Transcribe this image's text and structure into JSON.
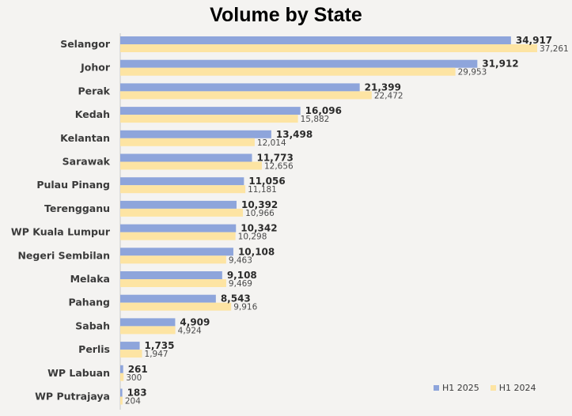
{
  "colors": {
    "h1_2025": "#8ea5db",
    "h1_2024": "#fde4a3",
    "axis": "#c8c8c8"
  },
  "chart_data": {
    "type": "bar",
    "orientation": "horizontal",
    "title": "Volume by State",
    "categories": [
      "Selangor",
      "Johor",
      "Perak",
      "Kedah",
      "Kelantan",
      "Sarawak",
      "Pulau Pinang",
      "Terengganu",
      "WP Kuala Lumpur",
      "Negeri Sembilan",
      "Melaka",
      "Pahang",
      "Sabah",
      "Perlis",
      "WP Labuan",
      "WP Putrajaya"
    ],
    "series": [
      {
        "name": "H1 2025",
        "values": [
          34917,
          31912,
          21399,
          16096,
          13498,
          11773,
          11056,
          10392,
          10342,
          10108,
          9108,
          8543,
          4909,
          1735,
          261,
          183
        ],
        "labels": [
          "34,917",
          "31,912",
          "21,399",
          "16,096",
          "13,498",
          "11,773",
          "11,056",
          "10,392",
          "10,342",
          "10,108",
          "9,108",
          "8,543",
          "4,909",
          "1,735",
          "261",
          "183"
        ]
      },
      {
        "name": "H1 2024",
        "values": [
          37261,
          29953,
          22472,
          15882,
          12014,
          12656,
          11181,
          10966,
          10298,
          9463,
          9469,
          9916,
          4924,
          1947,
          300,
          204
        ],
        "labels": [
          "37,261",
          "29,953",
          "22,472",
          "15,882",
          "12,014",
          "12,656",
          "11,181",
          "10,966",
          "10,298",
          "9,463",
          "9,469",
          "9,916",
          "4,924",
          "1,947",
          "300",
          "204"
        ]
      }
    ],
    "xlim": [
      0,
      37261
    ],
    "legend": "bottom-right",
    "grid": false
  }
}
